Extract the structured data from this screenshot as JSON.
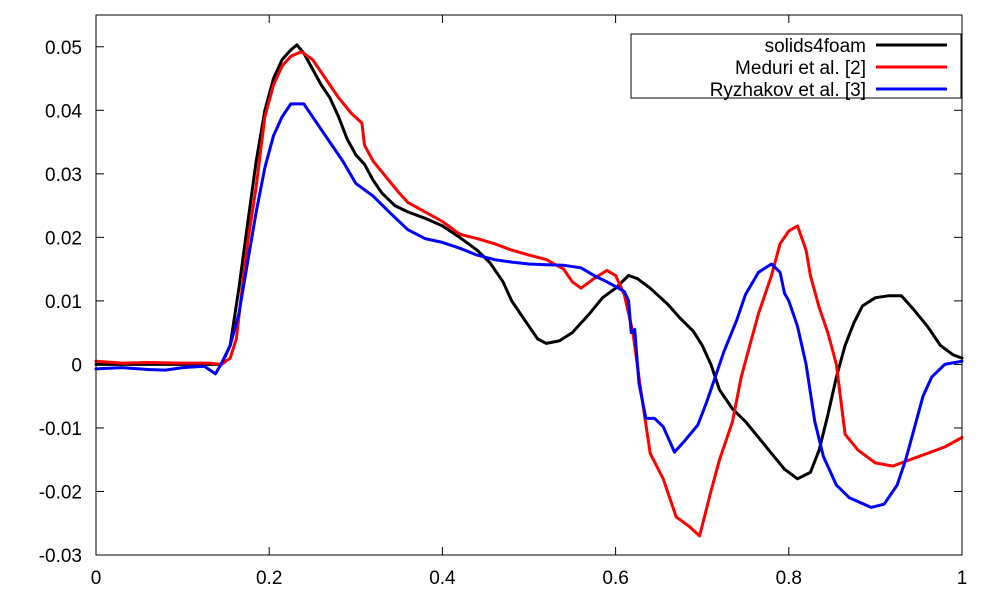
{
  "chart_data": {
    "type": "line",
    "title": "",
    "xlabel": "",
    "ylabel": "",
    "xlim": [
      0,
      1
    ],
    "ylim": [
      -0.03,
      0.055
    ],
    "grid": false,
    "legend_position": "top-right",
    "x_ticks": [
      {
        "value": 0,
        "label": "0"
      },
      {
        "value": 0.2,
        "label": "0.2"
      },
      {
        "value": 0.4,
        "label": "0.4"
      },
      {
        "value": 0.6,
        "label": "0.6"
      },
      {
        "value": 0.8,
        "label": "0.8"
      },
      {
        "value": 1,
        "label": "1"
      }
    ],
    "y_ticks": [
      {
        "value": -0.03,
        "label": "-0.03"
      },
      {
        "value": -0.02,
        "label": "-0.02"
      },
      {
        "value": -0.01,
        "label": "-0.01"
      },
      {
        "value": 0,
        "label": "0"
      },
      {
        "value": 0.01,
        "label": "0.01"
      },
      {
        "value": 0.02,
        "label": "0.02"
      },
      {
        "value": 0.03,
        "label": "0.03"
      },
      {
        "value": 0.04,
        "label": "0.04"
      },
      {
        "value": 0.05,
        "label": "0.05"
      }
    ],
    "series": [
      {
        "name": "solids4foam",
        "color": "#000000",
        "points": [
          [
            0,
            0.0
          ],
          [
            0.05,
            0.0
          ],
          [
            0.1,
            0.0
          ],
          [
            0.13,
            0.0
          ],
          [
            0.145,
            0.0
          ],
          [
            0.155,
            0.003
          ],
          [
            0.165,
            0.012
          ],
          [
            0.175,
            0.022
          ],
          [
            0.185,
            0.032
          ],
          [
            0.195,
            0.04
          ],
          [
            0.205,
            0.045
          ],
          [
            0.215,
            0.048
          ],
          [
            0.225,
            0.0495
          ],
          [
            0.232,
            0.0503
          ],
          [
            0.24,
            0.049
          ],
          [
            0.25,
            0.0465
          ],
          [
            0.26,
            0.044
          ],
          [
            0.27,
            0.042
          ],
          [
            0.28,
            0.039
          ],
          [
            0.29,
            0.0355
          ],
          [
            0.3,
            0.033
          ],
          [
            0.31,
            0.0315
          ],
          [
            0.32,
            0.029
          ],
          [
            0.33,
            0.027
          ],
          [
            0.345,
            0.025
          ],
          [
            0.36,
            0.024
          ],
          [
            0.38,
            0.023
          ],
          [
            0.4,
            0.0218
          ],
          [
            0.42,
            0.02
          ],
          [
            0.44,
            0.018
          ],
          [
            0.455,
            0.016
          ],
          [
            0.47,
            0.013
          ],
          [
            0.48,
            0.01
          ],
          [
            0.49,
            0.008
          ],
          [
            0.5,
            0.006
          ],
          [
            0.51,
            0.004
          ],
          [
            0.52,
            0.0033
          ],
          [
            0.535,
            0.0037
          ],
          [
            0.55,
            0.005
          ],
          [
            0.57,
            0.008
          ],
          [
            0.585,
            0.0105
          ],
          [
            0.6,
            0.012
          ],
          [
            0.615,
            0.014
          ],
          [
            0.625,
            0.0135
          ],
          [
            0.64,
            0.012
          ],
          [
            0.66,
            0.0095
          ],
          [
            0.675,
            0.0072
          ],
          [
            0.69,
            0.0052
          ],
          [
            0.7,
            0.003
          ],
          [
            0.71,
            0.0
          ],
          [
            0.72,
            -0.004
          ],
          [
            0.735,
            -0.007
          ],
          [
            0.75,
            -0.009
          ],
          [
            0.765,
            -0.0115
          ],
          [
            0.78,
            -0.014
          ],
          [
            0.795,
            -0.0165
          ],
          [
            0.81,
            -0.018
          ],
          [
            0.825,
            -0.017
          ],
          [
            0.835,
            -0.0135
          ],
          [
            0.845,
            -0.008
          ],
          [
            0.855,
            -0.002
          ],
          [
            0.865,
            0.003
          ],
          [
            0.875,
            0.0065
          ],
          [
            0.885,
            0.0092
          ],
          [
            0.9,
            0.0105
          ],
          [
            0.915,
            0.0108
          ],
          [
            0.93,
            0.0108
          ],
          [
            0.945,
            0.0085
          ],
          [
            0.96,
            0.006
          ],
          [
            0.975,
            0.003
          ],
          [
            0.99,
            0.0015
          ],
          [
            1.0,
            0.001
          ]
        ]
      },
      {
        "name": "Meduri et al. [2]",
        "color": "#ff0000",
        "points": [
          [
            0,
            0.0005
          ],
          [
            0.03,
            0.0002
          ],
          [
            0.06,
            0.0003
          ],
          [
            0.1,
            0.0002
          ],
          [
            0.13,
            0.0002
          ],
          [
            0.145,
            0.0
          ],
          [
            0.155,
            0.001
          ],
          [
            0.162,
            0.004
          ],
          [
            0.168,
            0.011
          ],
          [
            0.175,
            0.019
          ],
          [
            0.185,
            0.028
          ],
          [
            0.195,
            0.039
          ],
          [
            0.205,
            0.044
          ],
          [
            0.215,
            0.047
          ],
          [
            0.225,
            0.0485
          ],
          [
            0.237,
            0.0492
          ],
          [
            0.25,
            0.048
          ],
          [
            0.265,
            0.045
          ],
          [
            0.28,
            0.042
          ],
          [
            0.295,
            0.0395
          ],
          [
            0.307,
            0.038
          ],
          [
            0.31,
            0.0345
          ],
          [
            0.32,
            0.032
          ],
          [
            0.335,
            0.0295
          ],
          [
            0.35,
            0.027
          ],
          [
            0.36,
            0.0255
          ],
          [
            0.38,
            0.024
          ],
          [
            0.4,
            0.0225
          ],
          [
            0.42,
            0.0205
          ],
          [
            0.44,
            0.0198
          ],
          [
            0.46,
            0.019
          ],
          [
            0.48,
            0.018
          ],
          [
            0.5,
            0.0172
          ],
          [
            0.52,
            0.0165
          ],
          [
            0.54,
            0.015
          ],
          [
            0.55,
            0.013
          ],
          [
            0.56,
            0.012
          ],
          [
            0.575,
            0.0135
          ],
          [
            0.59,
            0.0148
          ],
          [
            0.6,
            0.014
          ],
          [
            0.61,
            0.011
          ],
          [
            0.62,
            0.005
          ],
          [
            0.628,
            -0.003
          ],
          [
            0.64,
            -0.014
          ],
          [
            0.655,
            -0.018
          ],
          [
            0.67,
            -0.024
          ],
          [
            0.685,
            -0.0255
          ],
          [
            0.697,
            -0.027
          ],
          [
            0.71,
            -0.02
          ],
          [
            0.72,
            -0.015
          ],
          [
            0.735,
            -0.009
          ],
          [
            0.745,
            -0.002
          ],
          [
            0.755,
            0.003
          ],
          [
            0.765,
            0.008
          ],
          [
            0.78,
            0.014
          ],
          [
            0.79,
            0.019
          ],
          [
            0.8,
            0.021
          ],
          [
            0.81,
            0.0218
          ],
          [
            0.82,
            0.018
          ],
          [
            0.825,
            0.014
          ],
          [
            0.835,
            0.009
          ],
          [
            0.845,
            0.005
          ],
          [
            0.855,
            0.0
          ],
          [
            0.865,
            -0.011
          ],
          [
            0.88,
            -0.0135
          ],
          [
            0.9,
            -0.0155
          ],
          [
            0.92,
            -0.016
          ],
          [
            0.94,
            -0.015
          ],
          [
            0.96,
            -0.014
          ],
          [
            0.98,
            -0.013
          ],
          [
            1.0,
            -0.0115
          ]
        ]
      },
      {
        "name": "Ryzhakov et al. [3]",
        "color": "#0000ff",
        "points": [
          [
            0,
            -0.0007
          ],
          [
            0.03,
            -0.0005
          ],
          [
            0.06,
            -0.0008
          ],
          [
            0.08,
            -0.0009
          ],
          [
            0.1,
            -0.0005
          ],
          [
            0.125,
            -0.0003
          ],
          [
            0.138,
            -0.0015
          ],
          [
            0.145,
            0.0002
          ],
          [
            0.155,
            0.003
          ],
          [
            0.165,
            0.008
          ],
          [
            0.175,
            0.016
          ],
          [
            0.185,
            0.024
          ],
          [
            0.195,
            0.031
          ],
          [
            0.205,
            0.036
          ],
          [
            0.215,
            0.039
          ],
          [
            0.225,
            0.041
          ],
          [
            0.24,
            0.041
          ],
          [
            0.255,
            0.038
          ],
          [
            0.27,
            0.035
          ],
          [
            0.285,
            0.032
          ],
          [
            0.3,
            0.0285
          ],
          [
            0.32,
            0.0265
          ],
          [
            0.34,
            0.0238
          ],
          [
            0.36,
            0.0212
          ],
          [
            0.38,
            0.0198
          ],
          [
            0.4,
            0.0192
          ],
          [
            0.42,
            0.0183
          ],
          [
            0.44,
            0.0172
          ],
          [
            0.46,
            0.0165
          ],
          [
            0.48,
            0.0161
          ],
          [
            0.5,
            0.0158
          ],
          [
            0.52,
            0.0157
          ],
          [
            0.54,
            0.0156
          ],
          [
            0.56,
            0.0152
          ],
          [
            0.575,
            0.014
          ],
          [
            0.59,
            0.013
          ],
          [
            0.61,
            0.0115
          ],
          [
            0.615,
            0.01
          ],
          [
            0.618,
            0.005
          ],
          [
            0.622,
            0.0055
          ],
          [
            0.627,
            -0.003
          ],
          [
            0.635,
            -0.0085
          ],
          [
            0.645,
            -0.0085
          ],
          [
            0.655,
            -0.0098
          ],
          [
            0.668,
            -0.0138
          ],
          [
            0.68,
            -0.012
          ],
          [
            0.695,
            -0.0095
          ],
          [
            0.705,
            -0.006
          ],
          [
            0.715,
            -0.002
          ],
          [
            0.725,
            0.002
          ],
          [
            0.74,
            0.007
          ],
          [
            0.75,
            0.011
          ],
          [
            0.765,
            0.0145
          ],
          [
            0.78,
            0.0158
          ],
          [
            0.79,
            0.0145
          ],
          [
            0.795,
            0.0112
          ],
          [
            0.8,
            0.01
          ],
          [
            0.81,
            0.006
          ],
          [
            0.82,
            0.0
          ],
          [
            0.83,
            -0.009
          ],
          [
            0.84,
            -0.0145
          ],
          [
            0.855,
            -0.019
          ],
          [
            0.87,
            -0.021
          ],
          [
            0.895,
            -0.0225
          ],
          [
            0.91,
            -0.022
          ],
          [
            0.925,
            -0.019
          ],
          [
            0.935,
            -0.015
          ],
          [
            0.945,
            -0.01
          ],
          [
            0.955,
            -0.005
          ],
          [
            0.965,
            -0.002
          ],
          [
            0.98,
            0.0
          ],
          [
            1.0,
            0.0005
          ]
        ]
      }
    ]
  }
}
